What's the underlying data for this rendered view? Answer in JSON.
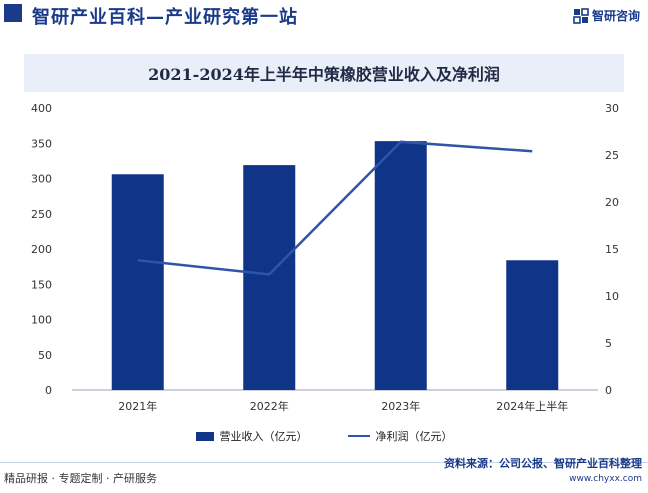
{
  "header": {
    "title": "智研产业百科—产业研究第一站",
    "logo_text": "智研咨询"
  },
  "chart_data": {
    "type": "bar",
    "title": "2021-2024年上半年中策橡胶营业收入及净利润",
    "categories": [
      "2021年",
      "2022年",
      "2023年",
      "2024年上半年"
    ],
    "series": [
      {
        "name": "营业收入（亿元）",
        "type": "bar",
        "axis": "left",
        "values": [
          306,
          319,
          353,
          184
        ],
        "color": "#0f3488"
      },
      {
        "name": "净利润（亿元）",
        "type": "line",
        "axis": "right",
        "values": [
          13.8,
          12.3,
          26.4,
          25.4
        ],
        "color": "#2f55a8"
      }
    ],
    "y_left": {
      "ylim": [
        0,
        400
      ],
      "ticks": [
        "0",
        "50",
        "100",
        "150",
        "200",
        "250",
        "300",
        "350",
        "400"
      ]
    },
    "y_right": {
      "ylim": [
        0,
        30
      ],
      "ticks": [
        "0",
        "5",
        "10",
        "15",
        "20",
        "25",
        "30"
      ]
    },
    "grid": false,
    "legend_position": "bottom"
  },
  "footer": {
    "left": "精品研报 · 专题定制 · 产研服务",
    "source": "资料来源：公司公报、智研产业百科整理",
    "url": "www.chyxx.com"
  }
}
